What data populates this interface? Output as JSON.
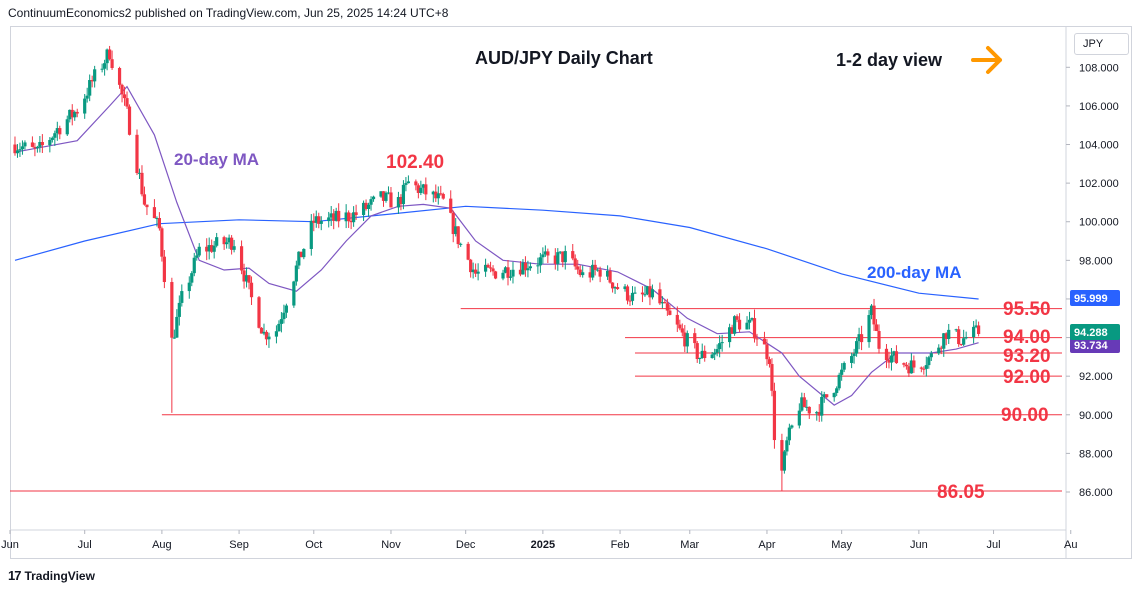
{
  "header": {
    "text": "ContinuumEconomics2 published on TradingView.com, Jun 25, 2025 14:24 UTC+8"
  },
  "footer": {
    "logo_glyph": "17",
    "brand": "TradingView"
  },
  "price_axis": {
    "currency": "JPY",
    "ticks": [
      "108.000",
      "106.000",
      "104.000",
      "102.000",
      "100.000",
      "98.000",
      "96.000",
      "94.000",
      "92.000",
      "90.000",
      "88.000",
      "86.000"
    ]
  },
  "time_axis": {
    "ticks": [
      "Jun",
      "Jul",
      "Aug",
      "Sep",
      "Oct",
      "Nov",
      "Dec",
      "2025",
      "Feb",
      "Mar",
      "Apr",
      "May",
      "Jun",
      "Jul",
      "Au"
    ]
  },
  "annotations": {
    "title": "AUD/JPY Daily Chart",
    "view": "1-2 day view",
    "ma20_label": "20-day MA",
    "ma200_label": "200-day MA",
    "high_label": "102.40"
  },
  "levels": [
    "95.50",
    "94.00",
    "93.20",
    "92.00",
    "90.00",
    "86.05"
  ],
  "price_badges": {
    "ma200": "95.999",
    "last": "94.288",
    "ma20": "93.734"
  },
  "colors": {
    "up": "#089981",
    "down": "#f23645",
    "ma20": "#7e57c2",
    "ma200": "#2962ff",
    "level": "#f23645",
    "arrow": "#ff9800",
    "last_badge": "#089981",
    "ma20_badge": "#673ab7",
    "ma200_badge": "#2962ff"
  },
  "chart_data": {
    "type": "candlestick",
    "title": "AUD/JPY Daily Chart",
    "ylim": [
      85.0,
      110.4
    ],
    "x_months": [
      "Jun 2024",
      "Jul",
      "Aug",
      "Sep",
      "Oct",
      "Nov",
      "Dec",
      "Jan 2025",
      "Feb",
      "Mar",
      "Apr",
      "May",
      "Jun",
      "Jul",
      "Aug"
    ],
    "close_path": [
      [
        "2024-06-03",
        104.0
      ],
      [
        "2024-06-12",
        103.6
      ],
      [
        "2024-06-20",
        104.8
      ],
      [
        "2024-06-28",
        105.8
      ],
      [
        "2024-07-05",
        107.5
      ],
      [
        "2024-07-11",
        108.8
      ],
      [
        "2024-07-18",
        105.6
      ],
      [
        "2024-07-25",
        101.0
      ],
      [
        "2024-07-31",
        99.6
      ],
      [
        "2024-08-05",
        93.8
      ],
      [
        "2024-08-09",
        96.0
      ],
      [
        "2024-08-16",
        98.5
      ],
      [
        "2024-08-23",
        98.8
      ],
      [
        "2024-08-30",
        99.0
      ],
      [
        "2024-09-06",
        96.0
      ],
      [
        "2024-09-11",
        94.2
      ],
      [
        "2024-09-16",
        94.4
      ],
      [
        "2024-09-25",
        98.0
      ],
      [
        "2024-10-01",
        100.0
      ],
      [
        "2024-10-09",
        100.1
      ],
      [
        "2024-10-18",
        100.4
      ],
      [
        "2024-10-28",
        101.2
      ],
      [
        "2024-11-04",
        101.0
      ],
      [
        "2024-11-08",
        102.0
      ],
      [
        "2024-11-15",
        101.5
      ],
      [
        "2024-11-22",
        101.0
      ],
      [
        "2024-11-29",
        98.8
      ],
      [
        "2024-12-05",
        97.3
      ],
      [
        "2024-12-13",
        97.4
      ],
      [
        "2024-12-20",
        97.6
      ],
      [
        "2024-12-31",
        98.0
      ],
      [
        "2025-01-10",
        98.2
      ],
      [
        "2025-01-17",
        97.2
      ],
      [
        "2025-01-24",
        97.5
      ],
      [
        "2025-01-31",
        96.6
      ],
      [
        "2025-02-07",
        96.0
      ],
      [
        "2025-02-14",
        96.3
      ],
      [
        "2025-02-21",
        95.0
      ],
      [
        "2025-02-28",
        93.8
      ],
      [
        "2025-03-05",
        93.0
      ],
      [
        "2025-03-12",
        93.4
      ],
      [
        "2025-03-19",
        94.8
      ],
      [
        "2025-03-26",
        94.6
      ],
      [
        "2025-04-02",
        93.0
      ],
      [
        "2025-04-04",
        89.0
      ],
      [
        "2025-04-07",
        87.0
      ],
      [
        "2025-04-09",
        88.5
      ],
      [
        "2025-04-14",
        90.5
      ],
      [
        "2025-04-21",
        90.2
      ],
      [
        "2025-04-28",
        91.5
      ],
      [
        "2025-05-05",
        93.0
      ],
      [
        "2025-05-09",
        94.0
      ],
      [
        "2025-05-13",
        95.3
      ],
      [
        "2025-05-16",
        93.6
      ],
      [
        "2025-05-23",
        92.8
      ],
      [
        "2025-05-30",
        92.5
      ],
      [
        "2025-06-06",
        93.0
      ],
      [
        "2025-06-12",
        94.3
      ],
      [
        "2025-06-18",
        93.9
      ],
      [
        "2025-06-25",
        94.288
      ]
    ],
    "ma20_path": [
      [
        "2024-06-03",
        103.6
      ],
      [
        "2024-06-28",
        104.2
      ],
      [
        "2024-07-11",
        106.0
      ],
      [
        "2024-07-18",
        107.0
      ],
      [
        "2024-07-29",
        104.5
      ],
      [
        "2024-08-07",
        101.0
      ],
      [
        "2024-08-16",
        98.0
      ],
      [
        "2024-08-26",
        97.5
      ],
      [
        "2024-09-05",
        97.6
      ],
      [
        "2024-09-13",
        96.8
      ],
      [
        "2024-09-24",
        96.4
      ],
      [
        "2024-10-04",
        97.5
      ],
      [
        "2024-10-14",
        99.0
      ],
      [
        "2024-10-24",
        100.3
      ],
      [
        "2024-11-04",
        100.8
      ],
      [
        "2024-11-14",
        100.9
      ],
      [
        "2024-11-25",
        100.7
      ],
      [
        "2024-12-05",
        99.0
      ],
      [
        "2024-12-16",
        98.0
      ],
      [
        "2024-12-31",
        97.8
      ],
      [
        "2025-01-15",
        97.8
      ],
      [
        "2025-01-31",
        97.4
      ],
      [
        "2025-02-14",
        96.5
      ],
      [
        "2025-02-28",
        95.0
      ],
      [
        "2025-03-12",
        94.2
      ],
      [
        "2025-03-25",
        94.3
      ],
      [
        "2025-04-07",
        93.2
      ],
      [
        "2025-04-14",
        92.0
      ],
      [
        "2025-04-28",
        90.5
      ],
      [
        "2025-05-05",
        91.0
      ],
      [
        "2025-05-13",
        92.2
      ],
      [
        "2025-05-23",
        93.2
      ],
      [
        "2025-06-06",
        93.2
      ],
      [
        "2025-06-16",
        93.4
      ],
      [
        "2025-06-25",
        93.734
      ]
    ],
    "ma200_path": [
      [
        "2024-06-03",
        98.0
      ],
      [
        "2024-07-01",
        99.0
      ],
      [
        "2024-07-31",
        99.9
      ],
      [
        "2024-09-01",
        100.1
      ],
      [
        "2024-10-01",
        100.0
      ],
      [
        "2024-11-01",
        100.4
      ],
      [
        "2024-12-01",
        100.8
      ],
      [
        "2025-01-01",
        100.6
      ],
      [
        "2025-02-01",
        100.3
      ],
      [
        "2025-03-01",
        99.7
      ],
      [
        "2025-04-01",
        98.6
      ],
      [
        "2025-05-01",
        97.3
      ],
      [
        "2025-06-01",
        96.3
      ],
      [
        "2025-06-25",
        95.999
      ]
    ],
    "horizontal_levels": [
      {
        "value": 95.5,
        "from": "2024-11-29"
      },
      {
        "value": 94.0,
        "from": "2025-02-03"
      },
      {
        "value": 93.2,
        "from": "2025-02-07"
      },
      {
        "value": 92.0,
        "from": "2025-02-07"
      },
      {
        "value": 90.0,
        "from": "2024-08-01"
      },
      {
        "value": 86.05,
        "from": "2024-06-01"
      }
    ],
    "xlabel": "",
    "ylabel": "JPY",
    "grid": false
  }
}
